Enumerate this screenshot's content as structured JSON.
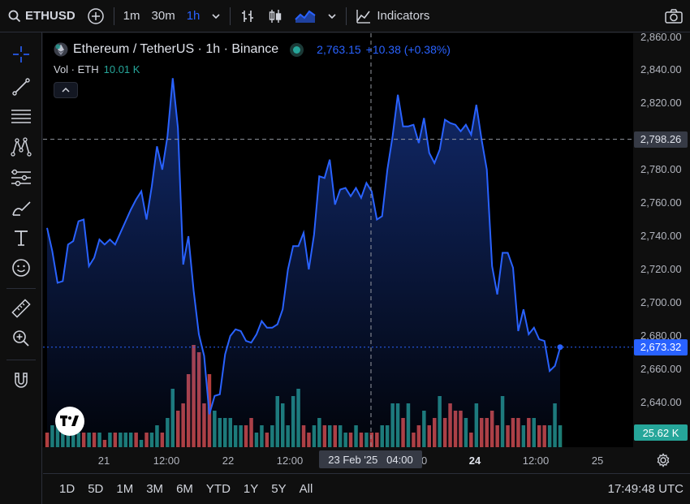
{
  "topbar": {
    "symbol": "ETHUSD",
    "intervals": [
      "1m",
      "30m",
      "1h"
    ],
    "active_interval": "1h",
    "indicators_label": "Indicators"
  },
  "legend": {
    "title": "Ethereum / TetherUS · 1h · Binance",
    "price": "2,763.15",
    "change": "+10.38 (+0.38%)",
    "vol_label": "Vol · ETH",
    "vol_value": "10.01 K"
  },
  "price_axis": {
    "ticks": [
      "2,860.00",
      "2,840.00",
      "2,820.00",
      "2,800.00",
      "2,780.00",
      "2,760.00",
      "2,740.00",
      "2,720.00",
      "2,700.00",
      "2,680.00",
      "2,660.00",
      "2,640.00"
    ],
    "crosshair_price": "2,798.26",
    "last_price": "2,673.32",
    "volume_tag": "25.62 K"
  },
  "time_axis": {
    "ticks": [
      "21",
      "12:00",
      "22",
      "12:00",
      "12:00",
      "24",
      "12:00",
      "25"
    ],
    "crosshair_time": "23 Feb '25   04:00"
  },
  "bottombar": {
    "ranges": [
      "1D",
      "5D",
      "1M",
      "3M",
      "6M",
      "YTD",
      "1Y",
      "5Y",
      "All"
    ],
    "clock": "17:49:48 UTC"
  },
  "colors": {
    "line": "#2962ff",
    "up": "#26a69a",
    "down": "#ef5350"
  },
  "chart_data": {
    "type": "area",
    "title": "Ethereum / TetherUS · 1h · Binance",
    "ylim": [
      2630,
      2862
    ],
    "y_ticks": [
      2640,
      2660,
      2680,
      2700,
      2720,
      2740,
      2760,
      2780,
      2800,
      2820,
      2840,
      2860
    ],
    "last_value": 2673.32,
    "crosshair_value": 2798.26,
    "series": [
      {
        "values": [
          2745,
          2731,
          2712,
          2713,
          2735,
          2737,
          2749,
          2750,
          2722,
          2727,
          2738,
          2735,
          2738,
          2735,
          2742,
          2749,
          2756,
          2762,
          2767,
          2750,
          2770,
          2794,
          2780,
          2800,
          2835,
          2805,
          2723,
          2740,
          2707,
          2681,
          2668,
          2633,
          2644,
          2645,
          2669,
          2680,
          2684,
          2683,
          2677,
          2676,
          2681,
          2689,
          2685,
          2685,
          2687,
          2696,
          2720,
          2734,
          2734,
          2742,
          2720,
          2741,
          2776,
          2775,
          2786,
          2759,
          2768,
          2769,
          2764,
          2769,
          2763,
          2772,
          2767,
          2750,
          2752,
          2780,
          2800,
          2825,
          2806,
          2806,
          2807,
          2796,
          2811,
          2790,
          2784,
          2792,
          2810,
          2808,
          2807,
          2803,
          2807,
          2801,
          2819,
          2798,
          2780,
          2722,
          2705,
          2730,
          2730,
          2721,
          2683,
          2696,
          2681,
          2685,
          2678,
          2677,
          2659,
          2662,
          2673
        ]
      }
    ],
    "volume": {
      "up": [
        false,
        true,
        true,
        true,
        true,
        true,
        true,
        false,
        true,
        false,
        true,
        false,
        true,
        false,
        true,
        true,
        true,
        false,
        true,
        false,
        true,
        true,
        false,
        true,
        true,
        false,
        false,
        false,
        false,
        false,
        false,
        false,
        true,
        true,
        true,
        true,
        true,
        true,
        false,
        false,
        true,
        true,
        false,
        true,
        true,
        true,
        true,
        true,
        true,
        false,
        false,
        true,
        true,
        false,
        true,
        false,
        true,
        true,
        false,
        true,
        false,
        true,
        false,
        false,
        true,
        true,
        true,
        true,
        false,
        true,
        false,
        false,
        true,
        false,
        false,
        true,
        false,
        false,
        false,
        false,
        true,
        false,
        true,
        false,
        false,
        false,
        false,
        true,
        false,
        false,
        false,
        true,
        false,
        true,
        false,
        false,
        true,
        true,
        true
      ],
      "values": [
        2,
        3,
        3,
        3,
        2,
        2,
        2,
        2,
        2,
        2,
        2,
        1,
        2,
        2,
        2,
        2,
        2,
        2,
        1,
        2,
        2,
        3,
        2,
        4,
        8,
        5,
        6,
        10,
        14,
        13,
        6,
        10,
        5,
        4,
        4,
        4,
        3,
        3,
        3,
        4,
        2,
        3,
        2,
        3,
        7,
        6,
        3,
        7,
        8,
        3,
        2,
        3,
        4,
        3,
        3,
        3,
        3,
        2,
        2,
        3,
        2,
        2,
        2,
        2,
        3,
        3,
        6,
        6,
        4,
        6,
        2,
        3,
        5,
        3,
        4,
        7,
        4,
        6,
        5,
        5,
        4,
        2,
        6,
        4,
        4,
        5,
        3,
        7,
        3,
        4,
        4,
        3,
        4,
        4,
        3,
        3,
        3,
        6,
        3
      ]
    }
  }
}
